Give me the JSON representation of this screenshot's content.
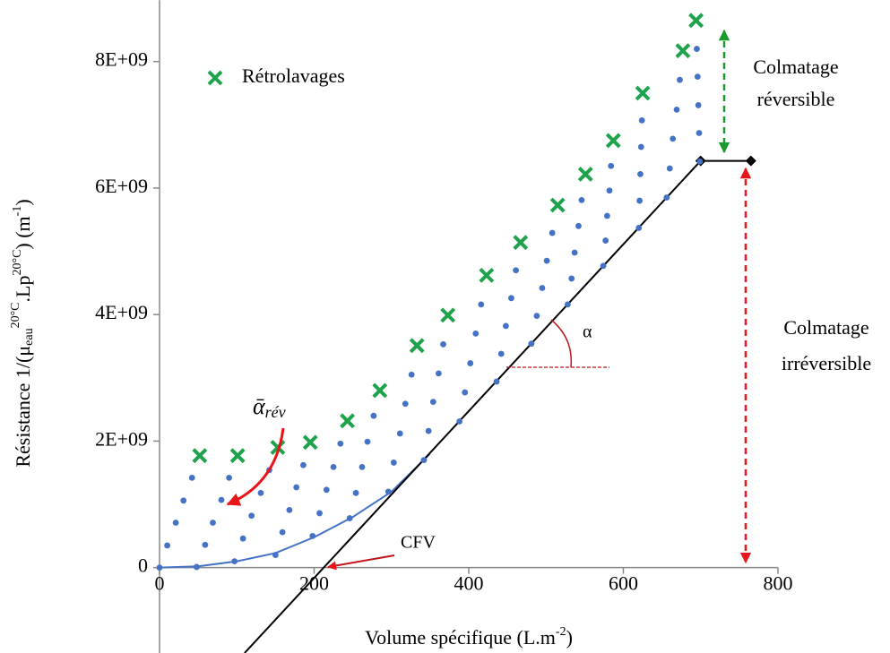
{
  "chart_data": {
    "type": "scatter",
    "xlabel": [
      "Volume spécifique (L.m",
      "-2",
      ")"
    ],
    "ylabel": [
      "Résistance 1/(μ",
      "eau",
      "20°C",
      ".Lp",
      "20°C",
      ") (m",
      "-1",
      ")"
    ],
    "xlim": [
      0,
      800
    ],
    "ylim": [
      -1350000000,
      8800000000
    ],
    "xticks": [
      0,
      200,
      400,
      600,
      800
    ],
    "yticks": [
      0,
      {
        "value": 2000000000,
        "label": "2E+09"
      },
      {
        "value": 4000000000,
        "label": "4E+09"
      },
      {
        "value": 6000000000,
        "label": "6E+09"
      },
      {
        "value": 8000000000,
        "label": "8E+09"
      }
    ],
    "grid": false,
    "legend": "upper left",
    "series": [
      {
        "name": "Rétrolavages",
        "color": "#1ea24b",
        "marker": "x",
        "x": [
          52,
          101,
          153,
          195,
          243,
          285,
          333,
          373,
          423,
          467,
          515,
          551,
          587,
          625,
          677,
          694
        ],
        "values": [
          1770000000.0,
          1770000000.0,
          1900000000.0,
          1980000000.0,
          2320000000.0,
          2800000000.0,
          3510000000.0,
          3990000000.0,
          4620000000.0,
          5140000000.0,
          5730000000.0,
          6220000000.0,
          6750000000.0,
          7500000000.0,
          8170000000.0,
          8650000000.0
        ]
      },
      {
        "color": "#4472c4",
        "marker": "dot",
        "x": [
          0,
          10,
          21,
          31,
          42,
          48,
          59,
          69,
          80,
          90,
          97,
          108,
          119,
          131,
          142,
          150,
          159,
          168,
          177,
          186,
          198,
          207,
          216,
          225,
          234,
          246,
          254,
          262,
          269,
          277,
          296,
          303,
          311,
          318,
          326,
          342,
          348,
          354,
          361,
          367,
          388,
          395,
          402,
          409,
          416,
          436,
          442,
          448,
          455,
          461,
          481,
          488,
          495,
          501,
          508,
          528,
          533,
          537,
          542,
          546,
          574,
          577,
          579,
          582,
          584,
          620,
          621,
          622,
          623,
          624,
          656,
          660,
          664,
          669,
          673,
          699,
          698,
          697,
          696,
          695
        ],
        "values": [
          0,
          350000000.0,
          710000000.0,
          1060000000.0,
          1420000000.0,
          10000000.0,
          360000000.0,
          710000000.0,
          1070000000.0,
          1420000000.0,
          100000000.0,
          460000000.0,
          820000000.0,
          1180000000.0,
          1540000000.0,
          200000000.0,
          560000000.0,
          910000000.0,
          1270000000.0,
          1620000000.0,
          500000000.0,
          860000000.0,
          1230000000.0,
          1590000000.0,
          1960000000.0,
          780000000.0,
          1180000000.0,
          1590000000.0,
          1990000000.0,
          2400000000.0,
          1200000000.0,
          1660000000.0,
          2120000000.0,
          2590000000.0,
          3050000000.0,
          1700000000.0,
          2160000000.0,
          2620000000.0,
          3070000000.0,
          3530000000.0,
          2310000000.0,
          2770000000.0,
          3230000000.0,
          3700000000.0,
          4160000000.0,
          2940000000.0,
          3380000000.0,
          3820000000.0,
          4260000000.0,
          4700000000.0,
          3540000000.0,
          3980000000.0,
          4420000000.0,
          4850000000.0,
          5290000000.0,
          4160000000.0,
          4570000000.0,
          4980000000.0,
          5400000000.0,
          5810000000.0,
          4770000000.0,
          5170000000.0,
          5560000000.0,
          5960000000.0,
          6350000000.0,
          5370000000.0,
          5800000000.0,
          6220000000.0,
          6650000000.0,
          7070000000.0,
          5850000000.0,
          6310000000.0,
          6780000000.0,
          7240000000.0,
          7710000000.0,
          6420000000.0,
          6870000000.0,
          7310000000.0,
          7760000000.0,
          8200000000.0
        ]
      },
      {
        "color": "#4472c4",
        "marker": "line",
        "x": [
          0,
          50,
          100,
          150,
          200,
          250,
          300,
          350
        ],
        "values": [
          0,
          20000000.0,
          100000000.0,
          230000000.0,
          480000000.0,
          800000000.0,
          1200000000.0,
          1800000000.0
        ]
      },
      {
        "color": "#000000",
        "marker": "line",
        "x": [
          110,
          700
        ],
        "values": [
          -1350000000.0,
          6430000000.0
        ]
      },
      {
        "color": "#000000",
        "marker": "line-diamond",
        "x": [
          700,
          765
        ],
        "values": [
          6430000000.0,
          6430000000.0
        ]
      }
    ],
    "annotations": {
      "reversible": [
        "Colmatage",
        "réversible"
      ],
      "irreversible": [
        "Colmatage",
        "irréversible"
      ],
      "cfv": "CFV",
      "alpha": "α",
      "alpha_rev": [
        "ᾱ",
        "rév"
      ]
    }
  }
}
